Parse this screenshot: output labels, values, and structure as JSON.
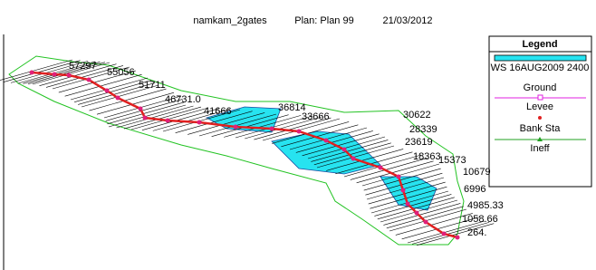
{
  "header": {
    "title": "namkam_2gates",
    "plan": "Plan: Plan 99",
    "date": "21/03/2012"
  },
  "legend": {
    "title": "Legend",
    "items": [
      "WS 16AUG2009 2400",
      "Ground",
      "Levee",
      "Bank Sta",
      "Ineff"
    ]
  },
  "stations": [
    "57297",
    "55056",
    "51711",
    "46731.0",
    "41666",
    "36814",
    "33666",
    "30622",
    "28339",
    "23619",
    "18363",
    "15373",
    "10679",
    "6996",
    "4985.33",
    "1058.66",
    "264."
  ]
}
